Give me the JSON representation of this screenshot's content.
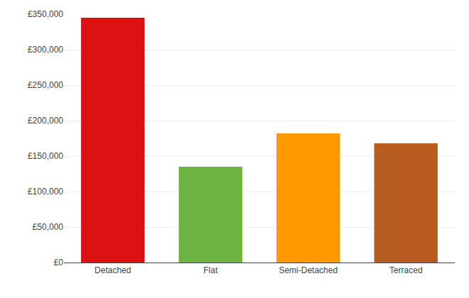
{
  "chart_data": {
    "type": "bar",
    "categories": [
      "Detached",
      "Flat",
      "Semi-Detached",
      "Terraced"
    ],
    "values": [
      345000,
      135000,
      182000,
      168000
    ],
    "colors": [
      "#dd1111",
      "#6db33f",
      "#ff9900",
      "#b85c20"
    ],
    "ylim": [
      0,
      350000
    ],
    "yticks": [
      {
        "value": 0,
        "label": "£0"
      },
      {
        "value": 50000,
        "label": "£50,000"
      },
      {
        "value": 100000,
        "label": "£100,000"
      },
      {
        "value": 150000,
        "label": "£150,000"
      },
      {
        "value": 200000,
        "label": "£200,000"
      },
      {
        "value": 250000,
        "label": "£250,000"
      },
      {
        "value": 300000,
        "label": "£300,000"
      },
      {
        "value": 350000,
        "label": "£350,000"
      }
    ],
    "grid": true
  }
}
